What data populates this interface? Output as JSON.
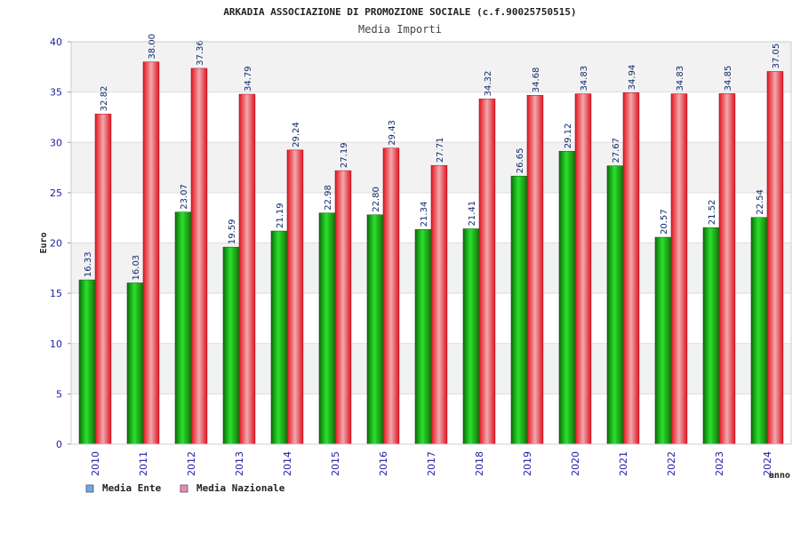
{
  "chart_data": {
    "type": "bar",
    "title": "ARKADIA ASSOCIAZIONE DI PROMOZIONE SOCIALE (c.f.90025750515)",
    "subtitle": "Media Importi",
    "xlabel": "anno",
    "ylabel": "Euro",
    "ylim": [
      0,
      40
    ],
    "yticks": [
      "0",
      "5",
      "10",
      "15",
      "20",
      "25",
      "30",
      "35",
      "40"
    ],
    "grid": true,
    "legend_position": "bottom-left",
    "categories": [
      "2010",
      "2011",
      "2012",
      "2013",
      "2014",
      "2015",
      "2016",
      "2017",
      "2018",
      "2019",
      "2020",
      "2021",
      "2022",
      "2023",
      "2024"
    ],
    "series": [
      {
        "name": "Media Ente",
        "color": "#1fa61f",
        "legend_color": "#6aa8e8",
        "values": [
          16.33,
          16.03,
          23.07,
          19.59,
          21.19,
          22.98,
          22.8,
          21.34,
          21.41,
          26.65,
          29.12,
          27.67,
          20.57,
          21.52,
          22.54
        ],
        "labels": [
          "16.33",
          "16.03",
          "23.07",
          "19.59",
          "21.19",
          "22.98",
          "22.80",
          "21.34",
          "21.41",
          "26.65",
          "29.12",
          "27.67",
          "20.57",
          "21.52",
          "22.54"
        ]
      },
      {
        "name": "Media Nazionale",
        "color": "#e63946",
        "legend_color": "#e889b8",
        "values": [
          32.82,
          38.0,
          37.36,
          34.79,
          29.24,
          27.19,
          29.43,
          27.71,
          34.32,
          34.68,
          34.83,
          34.94,
          34.83,
          34.85,
          37.05
        ],
        "labels": [
          "32.82",
          "38.00",
          "37.36",
          "34.79",
          "29.24",
          "27.19",
          "29.43",
          "27.71",
          "34.32",
          "34.68",
          "34.83",
          "34.94",
          "34.83",
          "34.85",
          "37.05"
        ]
      }
    ]
  }
}
